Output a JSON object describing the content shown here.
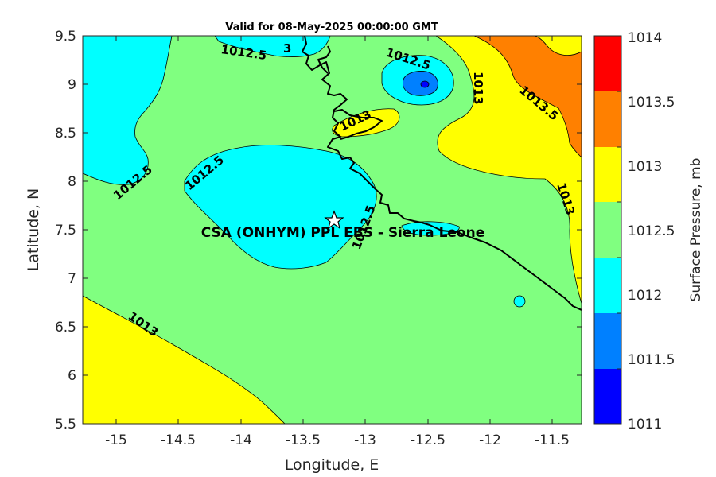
{
  "title": "Valid for 08-May-2025 00:00:00 GMT",
  "x_axis": {
    "label": "Longitude, E",
    "range": [
      -15.25,
      -11.25
    ],
    "ticks": [
      -15,
      -14.5,
      -14,
      -13.5,
      -13,
      -12.5,
      -12,
      -11.5
    ],
    "tick_labels": [
      "-15",
      "-14.5",
      "-14",
      "-13.5",
      "-13",
      "-12.5",
      "-12",
      "-11.5"
    ]
  },
  "y_axis": {
    "label": "Latitude, N",
    "range": [
      5.5,
      9.5
    ],
    "ticks": [
      5.5,
      6,
      6.5,
      7,
      7.5,
      8,
      8.5,
      9,
      9.5
    ],
    "tick_labels": [
      "5.5",
      "6",
      "6.5",
      "7",
      "7.5",
      "8",
      "8.5",
      "9",
      "9.5"
    ]
  },
  "colorbar": {
    "label": "Surface Pressure, mb",
    "levels": [
      1011,
      1011.5,
      1012,
      1012.5,
      1013,
      1013.5,
      1014
    ],
    "tick_labels": [
      "1011",
      "1011.5",
      "1012",
      "1012.5",
      "1013",
      "1013.5",
      "1014"
    ],
    "colors": [
      "#0000ff",
      "#0080ff",
      "#00ffff",
      "#80ff80",
      "#ffff00",
      "#ff8000",
      "#ff0000"
    ]
  },
  "station": {
    "name": "CSA (ONHYM) PPL EBS  - Sierra Leone",
    "lon": -13.25,
    "lat": 7.6,
    "marker": "star-icon"
  },
  "contour_labels": [
    "1012.5",
    "1012.5",
    "1012.5",
    "1012.5",
    "1013",
    "1013",
    "1013.5",
    "1013",
    "1013",
    "1012.5",
    "3"
  ],
  "chart_data": {
    "type": "heatmap",
    "title": "Valid for 08-May-2025 00:00:00 GMT",
    "xlabel": "Longitude, E",
    "ylabel": "Latitude, N",
    "xlim": [
      -15.25,
      -11.25
    ],
    "ylim": [
      5.5,
      9.5
    ],
    "colorbar_label": "Surface Pressure, mb",
    "colorbar_range": [
      1011,
      1014
    ],
    "pressure_regions_mb": [
      {
        "level": 1012.5,
        "area": "background"
      },
      {
        "level": 1012,
        "area": "northwest"
      },
      {
        "level": 1012,
        "area": "north-centre"
      },
      {
        "level": 1012,
        "area": "central (around station)"
      },
      {
        "level": 1012,
        "area": "north-east small low"
      },
      {
        "level": 1011.5,
        "area": "north-east small low core"
      },
      {
        "level": 1013,
        "area": "southwest"
      },
      {
        "level": 1013,
        "area": "north-east"
      },
      {
        "level": 1013.5,
        "area": "north-east corner"
      },
      {
        "level": 1013,
        "area": "small patch near -12.9, 8.5"
      }
    ]
  }
}
